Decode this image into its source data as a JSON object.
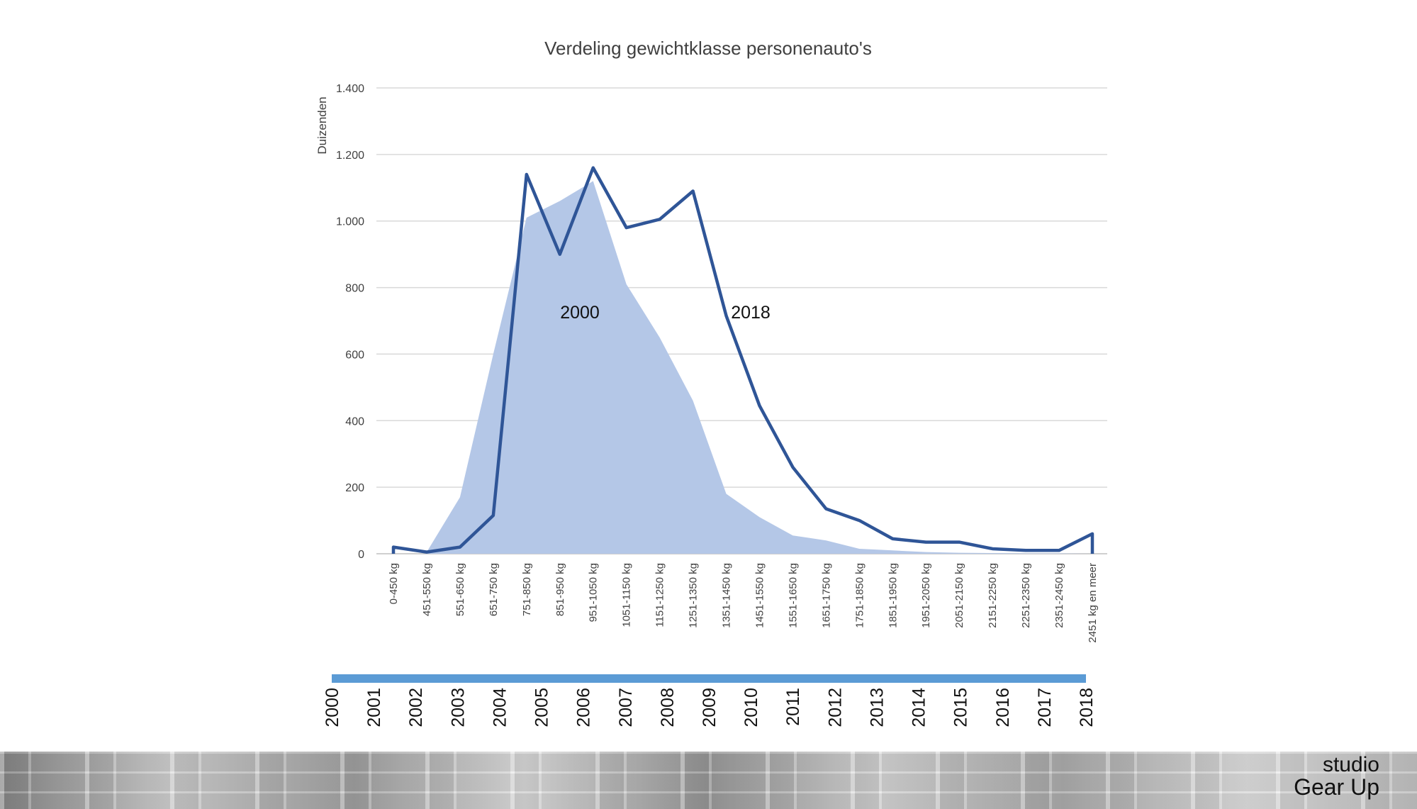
{
  "chart_data": {
    "type": "area",
    "title": "Verdeling gewichtklasse personenauto's",
    "ylabel": "Duizenden",
    "ylim": [
      0,
      1400
    ],
    "yticks": [
      0,
      200,
      400,
      600,
      800,
      1000,
      1200,
      1400
    ],
    "ytick_labels": [
      "0",
      "200",
      "400",
      "600",
      "800",
      "1.000",
      "1.200",
      "1.400"
    ],
    "grid": true,
    "categories": [
      "0-450 kg",
      "451-550 kg",
      "551-650 kg",
      "651-750 kg",
      "751-850 kg",
      "851-950 kg",
      "951-1050 kg",
      "1051-1150 kg",
      "1151-1250 kg",
      "1251-1350 kg",
      "1351-1450 kg",
      "1451-1550 kg",
      "1551-1650 kg",
      "1651-1750 kg",
      "1751-1850 kg",
      "1851-1950 kg",
      "1951-2050 kg",
      "2051-2150 kg",
      "2151-2250 kg",
      "2251-2350 kg",
      "2351-2450 kg",
      "2451 kg en meer"
    ],
    "series": [
      {
        "name": "2000",
        "kind": "area",
        "color": "#b4c7e7",
        "values": [
          null,
          5,
          170,
          600,
          1010,
          1060,
          1120,
          810,
          650,
          460,
          180,
          110,
          55,
          40,
          15,
          10,
          5,
          3,
          2,
          1,
          1,
          0
        ]
      },
      {
        "name": "2018",
        "kind": "line",
        "color": "#2f5597",
        "values": [
          20,
          5,
          20,
          115,
          1140,
          900,
          1160,
          980,
          1005,
          1090,
          715,
          445,
          260,
          135,
          100,
          45,
          35,
          35,
          15,
          10,
          10,
          60
        ]
      }
    ]
  },
  "timeline": {
    "bar_color": "#5b9bd5",
    "years": [
      "2000",
      "2001",
      "2002",
      "2003",
      "2004",
      "2005",
      "2006",
      "2007",
      "2008",
      "2009",
      "2010",
      "2011",
      "2012",
      "2013",
      "2014",
      "2015",
      "2016",
      "2017",
      "2018"
    ]
  },
  "brand": {
    "line1": "studio",
    "line2": "Gear Up"
  }
}
